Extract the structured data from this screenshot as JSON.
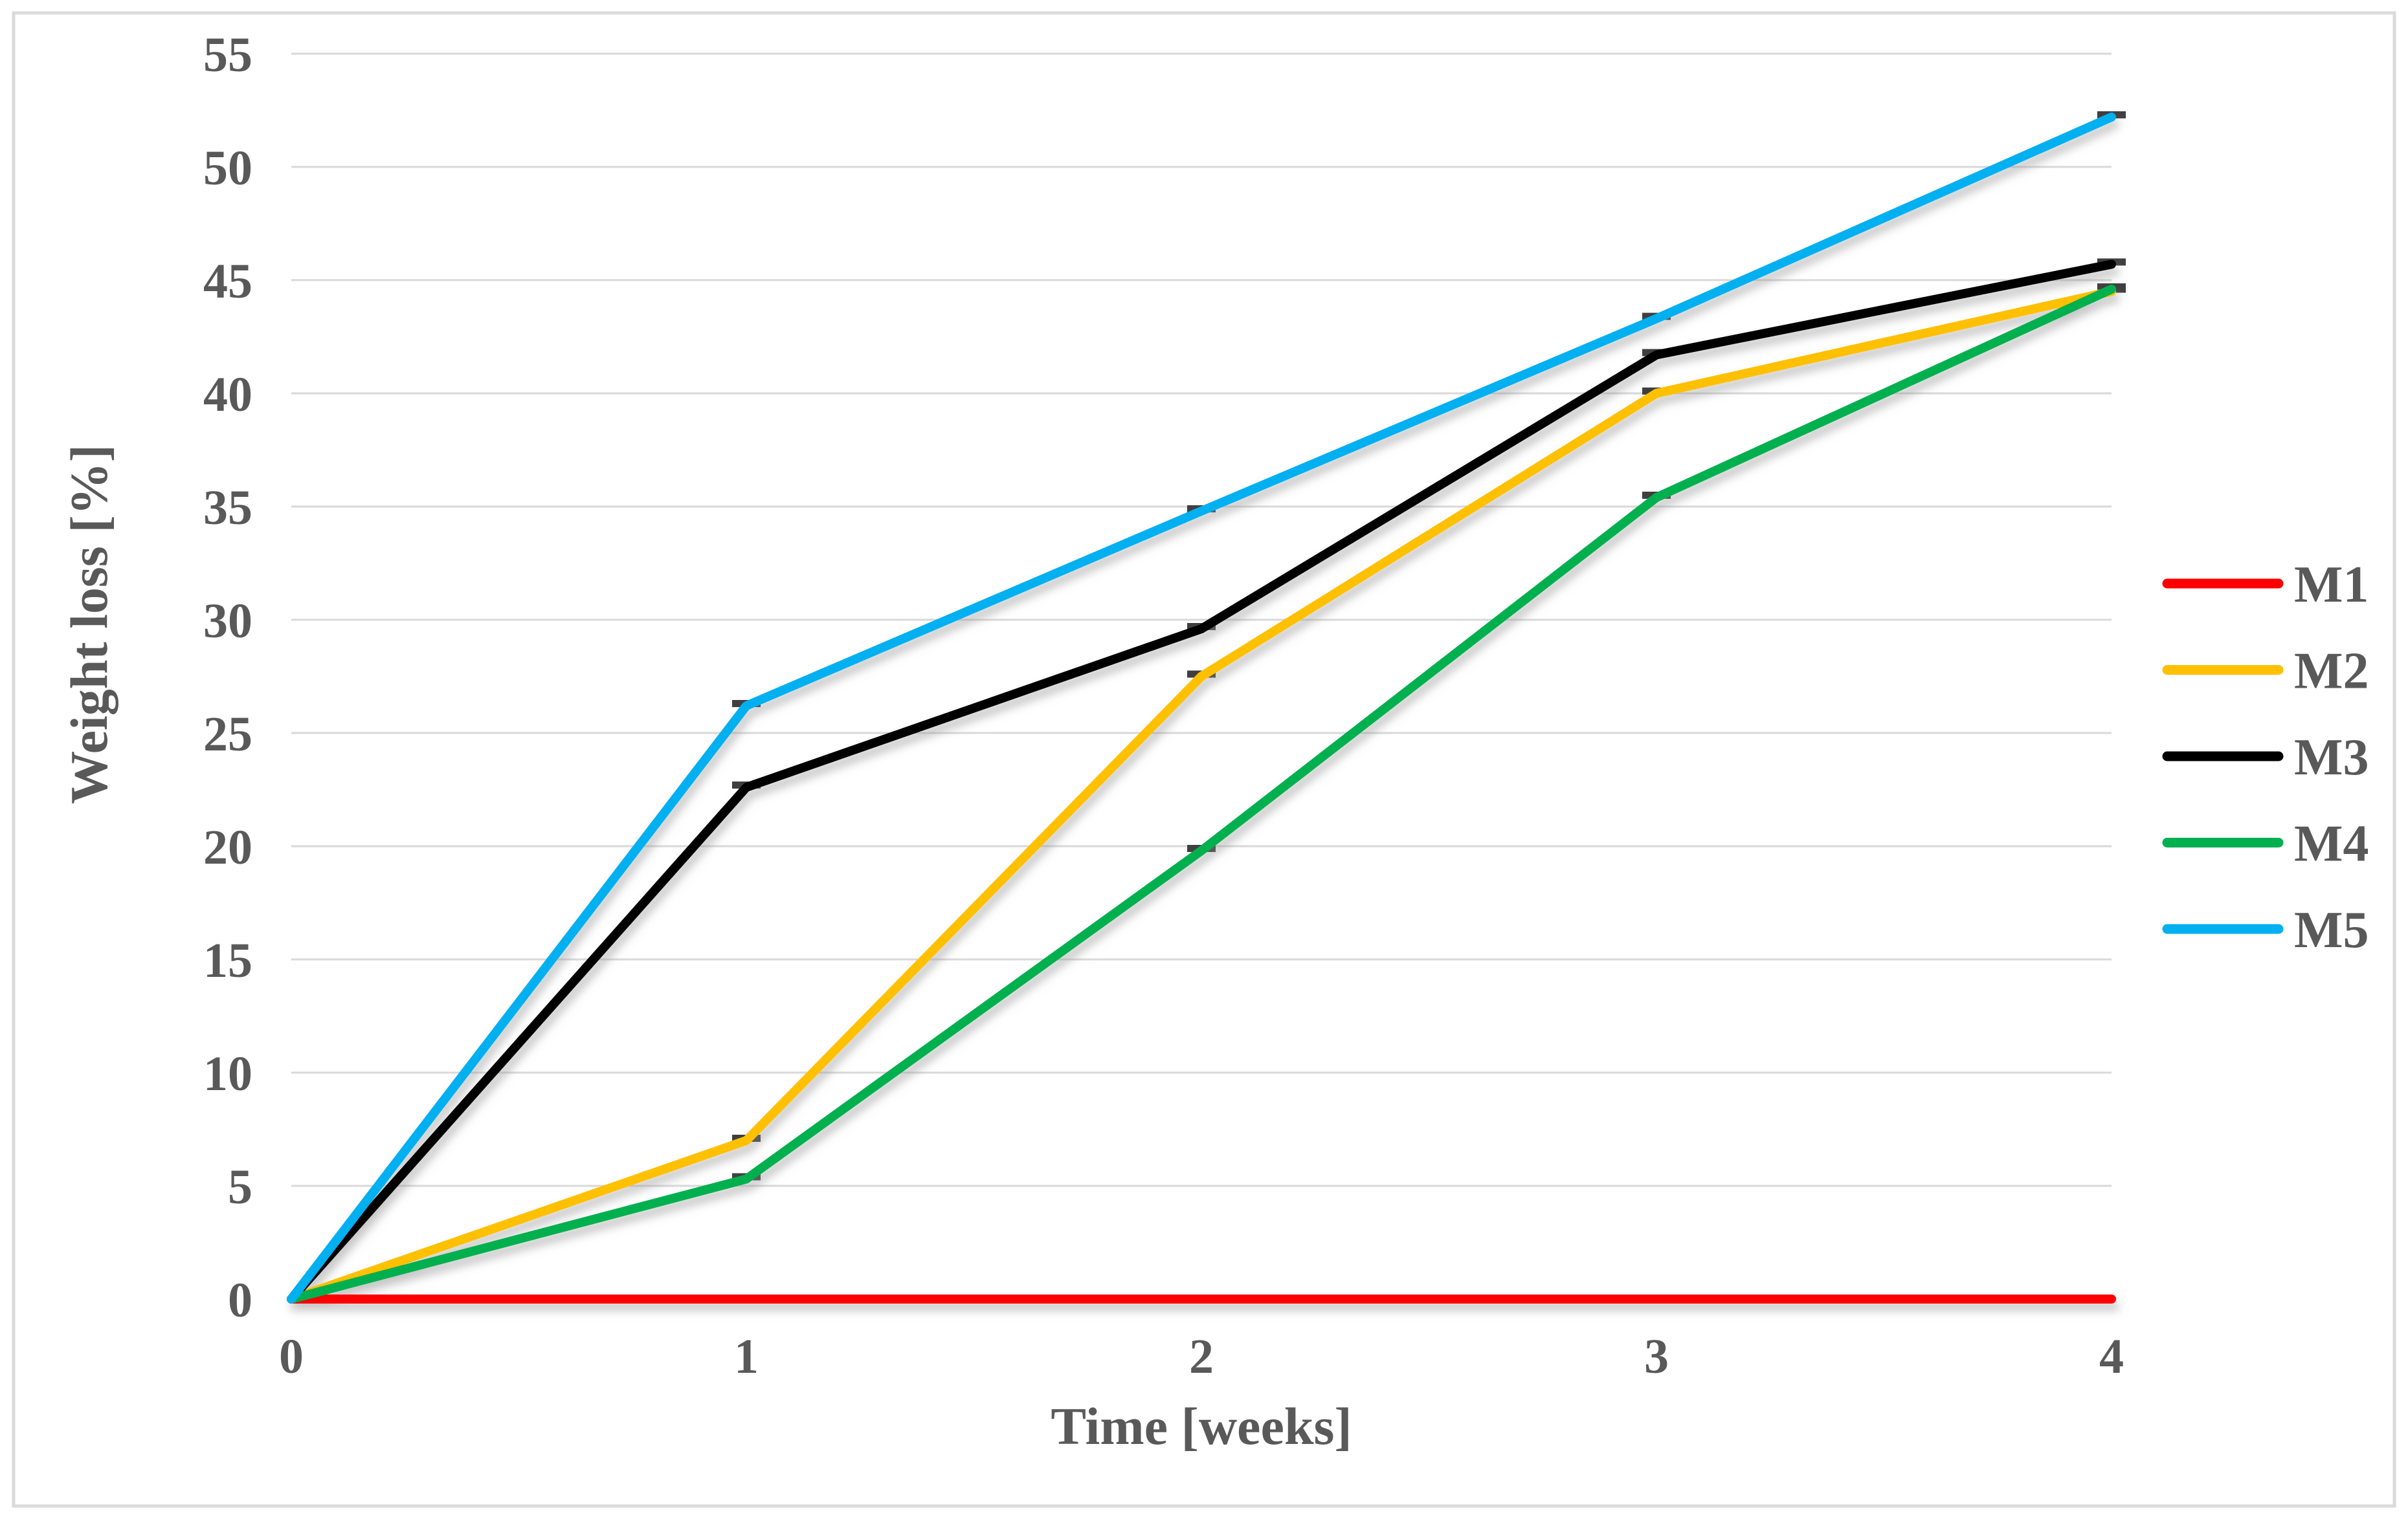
{
  "chart_data": {
    "type": "line",
    "title": "",
    "xlabel": "Time [weeks]",
    "ylabel": "Weight loss [%]",
    "x": [
      0,
      1,
      2,
      3,
      4
    ],
    "x_tick_labels": [
      "0",
      "1",
      "2",
      "3",
      "4"
    ],
    "y_tick_labels": [
      "0",
      "5",
      "10",
      "15",
      "20",
      "25",
      "30",
      "35",
      "40",
      "45",
      "50",
      "55"
    ],
    "xlim": [
      0,
      4
    ],
    "ylim": [
      0,
      55
    ],
    "y_tick_step": 5,
    "grid": "horizontal",
    "legend_position": "right",
    "series": [
      {
        "name": "M1",
        "color": "#FF0000",
        "values": [
          0,
          0,
          0,
          0,
          0
        ]
      },
      {
        "name": "M2",
        "color": "#FFC000",
        "values": [
          0,
          7.0,
          27.5,
          40.0,
          44.5
        ]
      },
      {
        "name": "M3",
        "color": "#000000",
        "values": [
          0,
          22.6,
          29.6,
          41.7,
          45.7
        ]
      },
      {
        "name": "M4",
        "color": "#00B050",
        "values": [
          0,
          5.3,
          19.8,
          35.4,
          44.6
        ]
      },
      {
        "name": "M5",
        "color": "#00B0F0",
        "values": [
          0,
          26.2,
          34.8,
          43.3,
          52.2
        ]
      }
    ],
    "error_caps": {
      "series": [
        "M2",
        "M3",
        "M4",
        "M5"
      ],
      "weeks": [
        1,
        2,
        3,
        4
      ],
      "color": "#3F3F3F"
    },
    "colors": {
      "gridline": "#D9D9D9",
      "text": "#595959",
      "frame_border": "#DBDBDB",
      "background": "#FFFFFF"
    }
  }
}
